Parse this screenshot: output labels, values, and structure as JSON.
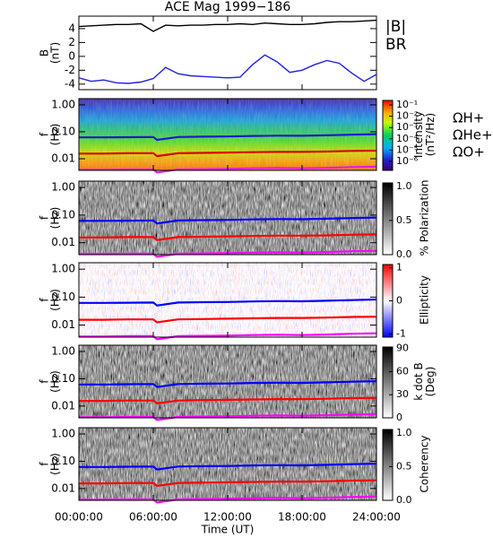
{
  "title": "ACE Mag 1999−186",
  "time_axis": {
    "label": "Time (UT)",
    "xlim": [
      0,
      24
    ],
    "xticks": [
      {
        "value": 0,
        "label": "00:00:00"
      },
      {
        "value": 6,
        "label": "06:00:00"
      },
      {
        "value": 12,
        "label": "12:00:00"
      },
      {
        "value": 18,
        "label": "18:00:00"
      },
      {
        "value": 24,
        "label": "24:00:00"
      }
    ]
  },
  "chart_data": [
    {
      "type": "line",
      "ylabel": [
        "B",
        "(nT)"
      ],
      "ylim": [
        -4.8,
        5.8
      ],
      "yticks": [
        -4,
        -2,
        0,
        2,
        4
      ],
      "x": [
        0,
        1,
        2,
        3,
        4,
        5,
        6,
        7,
        8,
        9,
        10,
        11,
        12,
        13,
        14,
        15,
        16,
        17,
        18,
        19,
        20,
        21,
        22,
        23,
        24
      ],
      "series": [
        {
          "name": "|B|",
          "color": "#000000",
          "values": [
            4.3,
            4.4,
            4.5,
            4.6,
            4.6,
            4.7,
            3.6,
            4.5,
            4.4,
            4.5,
            4.5,
            4.6,
            4.6,
            4.7,
            4.6,
            4.8,
            4.7,
            4.6,
            4.6,
            4.7,
            4.9,
            5.0,
            5.0,
            5.1,
            5.2
          ]
        },
        {
          "name": "BR",
          "color": "#2020e0",
          "values": [
            -3.1,
            -3.6,
            -3.4,
            -3.8,
            -3.9,
            -3.7,
            -3.2,
            -1.6,
            -2.5,
            -2.8,
            -2.9,
            -3.0,
            -3.1,
            -3.0,
            -1.2,
            0.2,
            -0.8,
            -2.3,
            -2.0,
            -1.2,
            -0.6,
            -1.0,
            -2.4,
            -3.6,
            -2.6
          ]
        }
      ]
    },
    {
      "type": "spectrogram",
      "ylabel": [
        "f",
        "(Hz)"
      ],
      "log_y": true,
      "ylim": [
        0.0037,
        1.7
      ],
      "yticks": [
        {
          "value": 1,
          "label": "1.00"
        },
        {
          "value": 0.1,
          "label": "0.10"
        },
        {
          "value": 0.01,
          "label": "0.01"
        }
      ],
      "colorbar": {
        "colormap": "rainbow",
        "log": true,
        "clim": [
          1.6e-07,
          0.25
        ],
        "label": [
          "Intensity",
          "(nT²/Hz)"
        ],
        "ticks": [
          {
            "value": 0.1,
            "label": "10⁻¹"
          },
          {
            "value": 0.01,
            "label": "10⁻²"
          },
          {
            "value": 0.001,
            "label": "10⁻³"
          },
          {
            "value": 0.0001,
            "label": "10⁻⁴"
          },
          {
            "value": 1e-05,
            "label": "10⁻⁵"
          },
          {
            "value": 1e-06,
            "label": "10⁻⁶"
          }
        ]
      },
      "x": [
        0,
        2,
        4,
        6,
        6.3,
        8,
        10,
        12,
        14,
        16,
        18,
        20,
        22,
        24
      ],
      "series": [
        {
          "name": "ΩH+",
          "color": "#1a1acc",
          "values": [
            0.062,
            0.062,
            0.063,
            0.064,
            0.05,
            0.064,
            0.066,
            0.067,
            0.07,
            0.072,
            0.071,
            0.074,
            0.078,
            0.082
          ]
        },
        {
          "name": "ΩHe+",
          "color": "#e00000",
          "values": [
            0.0155,
            0.0155,
            0.016,
            0.016,
            0.0125,
            0.016,
            0.0165,
            0.017,
            0.0175,
            0.018,
            0.018,
            0.0185,
            0.0195,
            0.02
          ]
        },
        {
          "name": "ΩO+",
          "color": "#e020e0",
          "values": [
            0.0039,
            0.0039,
            0.004,
            0.004,
            0.0031,
            0.004,
            0.0041,
            0.0042,
            0.0044,
            0.0045,
            0.0044,
            0.0046,
            0.0049,
            0.0051
          ]
        }
      ]
    },
    {
      "type": "spectrogram",
      "ylabel": [
        "f",
        "(Hz)"
      ],
      "log_y": true,
      "ylim": [
        0.0037,
        1.7
      ],
      "yticks": [
        {
          "value": 1,
          "label": "1.00"
        },
        {
          "value": 0.1,
          "label": "0.10"
        },
        {
          "value": 0.01,
          "label": "0.01"
        }
      ],
      "colorbar": {
        "colormap": "gray",
        "clim": [
          0,
          1.05
        ],
        "label": [
          "% Polarization"
        ],
        "ticks": [
          {
            "value": 0,
            "label": "0.0"
          },
          {
            "value": 0.5,
            "label": "0.5"
          },
          {
            "value": 1,
            "label": "1.0"
          }
        ]
      },
      "x": [
        0,
        2,
        4,
        6,
        6.3,
        8,
        10,
        12,
        14,
        16,
        18,
        20,
        22,
        24
      ],
      "series": [
        {
          "color": "#0000ff",
          "values": [
            0.062,
            0.062,
            0.063,
            0.064,
            0.05,
            0.064,
            0.066,
            0.067,
            0.07,
            0.072,
            0.071,
            0.074,
            0.078,
            0.082
          ]
        },
        {
          "color": "#ff0000",
          "values": [
            0.0155,
            0.0155,
            0.016,
            0.016,
            0.0125,
            0.016,
            0.0165,
            0.017,
            0.0175,
            0.018,
            0.018,
            0.0185,
            0.0195,
            0.02
          ]
        },
        {
          "color": "#ff00ff",
          "values": [
            0.0039,
            0.0039,
            0.004,
            0.004,
            0.0031,
            0.004,
            0.0041,
            0.0042,
            0.0044,
            0.0045,
            0.0044,
            0.0046,
            0.0049,
            0.0051
          ]
        }
      ]
    },
    {
      "type": "spectrogram",
      "ylabel": [
        "f",
        "(Hz)"
      ],
      "log_y": true,
      "ylim": [
        0.0037,
        1.7
      ],
      "yticks": [
        {
          "value": 1,
          "label": "1.00"
        },
        {
          "value": 0.1,
          "label": "0.10"
        },
        {
          "value": 0.01,
          "label": "0.01"
        }
      ],
      "colorbar": {
        "colormap": "bwr",
        "clim": [
          -1.1,
          1.1
        ],
        "label": [
          "Ellipticity"
        ],
        "ticks": [
          -1,
          0,
          1
        ]
      },
      "x": [
        0,
        2,
        4,
        6,
        6.3,
        8,
        10,
        12,
        14,
        16,
        18,
        20,
        22,
        24
      ],
      "series": [
        {
          "color": "#0000ff",
          "values": [
            0.062,
            0.062,
            0.063,
            0.064,
            0.05,
            0.064,
            0.066,
            0.067,
            0.07,
            0.072,
            0.071,
            0.074,
            0.078,
            0.082
          ]
        },
        {
          "color": "#ff0000",
          "values": [
            0.0155,
            0.0155,
            0.016,
            0.016,
            0.0125,
            0.016,
            0.0165,
            0.017,
            0.0175,
            0.018,
            0.018,
            0.0185,
            0.0195,
            0.02
          ]
        },
        {
          "color": "#ff00ff",
          "values": [
            0.0039,
            0.0039,
            0.004,
            0.004,
            0.0031,
            0.004,
            0.0041,
            0.0042,
            0.0044,
            0.0045,
            0.0044,
            0.0046,
            0.0049,
            0.0051
          ]
        }
      ]
    },
    {
      "type": "spectrogram",
      "ylabel": [
        "f",
        "(Hz)"
      ],
      "log_y": true,
      "ylim": [
        0.0037,
        1.7
      ],
      "yticks": [
        {
          "value": 1,
          "label": "1.00"
        },
        {
          "value": 0.1,
          "label": "0.10"
        },
        {
          "value": 0.01,
          "label": "0.01"
        }
      ],
      "colorbar": {
        "colormap": "gray",
        "clim": [
          0,
          92
        ],
        "label": [
          "k dot B",
          "(Deg)"
        ],
        "ticks": [
          0,
          30,
          60,
          90
        ]
      },
      "x": [
        0,
        2,
        4,
        6,
        6.3,
        8,
        10,
        12,
        14,
        16,
        18,
        20,
        22,
        24
      ],
      "series": [
        {
          "color": "#0000ff",
          "values": [
            0.062,
            0.062,
            0.063,
            0.064,
            0.05,
            0.064,
            0.066,
            0.067,
            0.07,
            0.072,
            0.071,
            0.074,
            0.078,
            0.082
          ]
        },
        {
          "color": "#ff0000",
          "values": [
            0.0155,
            0.0155,
            0.016,
            0.016,
            0.0125,
            0.016,
            0.0165,
            0.017,
            0.0175,
            0.018,
            0.018,
            0.0185,
            0.0195,
            0.02
          ]
        },
        {
          "color": "#ff00ff",
          "values": [
            0.0039,
            0.0039,
            0.004,
            0.004,
            0.0031,
            0.004,
            0.0041,
            0.0042,
            0.0044,
            0.0045,
            0.0044,
            0.0046,
            0.0049,
            0.0051
          ]
        }
      ]
    },
    {
      "type": "spectrogram",
      "ylabel": [
        "f",
        "(Hz)"
      ],
      "log_y": true,
      "ylim": [
        0.0037,
        1.7
      ],
      "yticks": [
        {
          "value": 1,
          "label": "1.00"
        },
        {
          "value": 0.1,
          "label": "0.10"
        },
        {
          "value": 0.01,
          "label": "0.01"
        }
      ],
      "colorbar": {
        "colormap": "gray",
        "clim": [
          0,
          1.05
        ],
        "label": [
          "Coherency"
        ],
        "ticks": [
          {
            "value": 0,
            "label": "0.0"
          },
          {
            "value": 0.5,
            "label": "0.5"
          },
          {
            "value": 1,
            "label": "1.0"
          }
        ]
      },
      "x": [
        0,
        2,
        4,
        6,
        6.3,
        8,
        10,
        12,
        14,
        16,
        18,
        20,
        22,
        24
      ],
      "series": [
        {
          "color": "#0000ff",
          "values": [
            0.062,
            0.062,
            0.063,
            0.064,
            0.05,
            0.064,
            0.066,
            0.067,
            0.07,
            0.072,
            0.071,
            0.074,
            0.078,
            0.082
          ]
        },
        {
          "color": "#ff0000",
          "values": [
            0.0155,
            0.0155,
            0.016,
            0.016,
            0.0125,
            0.016,
            0.0165,
            0.017,
            0.0175,
            0.018,
            0.018,
            0.0185,
            0.0195,
            0.02
          ]
        },
        {
          "color": "#ff00ff",
          "values": [
            0.0039,
            0.0039,
            0.004,
            0.004,
            0.0031,
            0.004,
            0.0041,
            0.0042,
            0.0044,
            0.0045,
            0.0044,
            0.0046,
            0.0049,
            0.0051
          ]
        }
      ]
    }
  ]
}
